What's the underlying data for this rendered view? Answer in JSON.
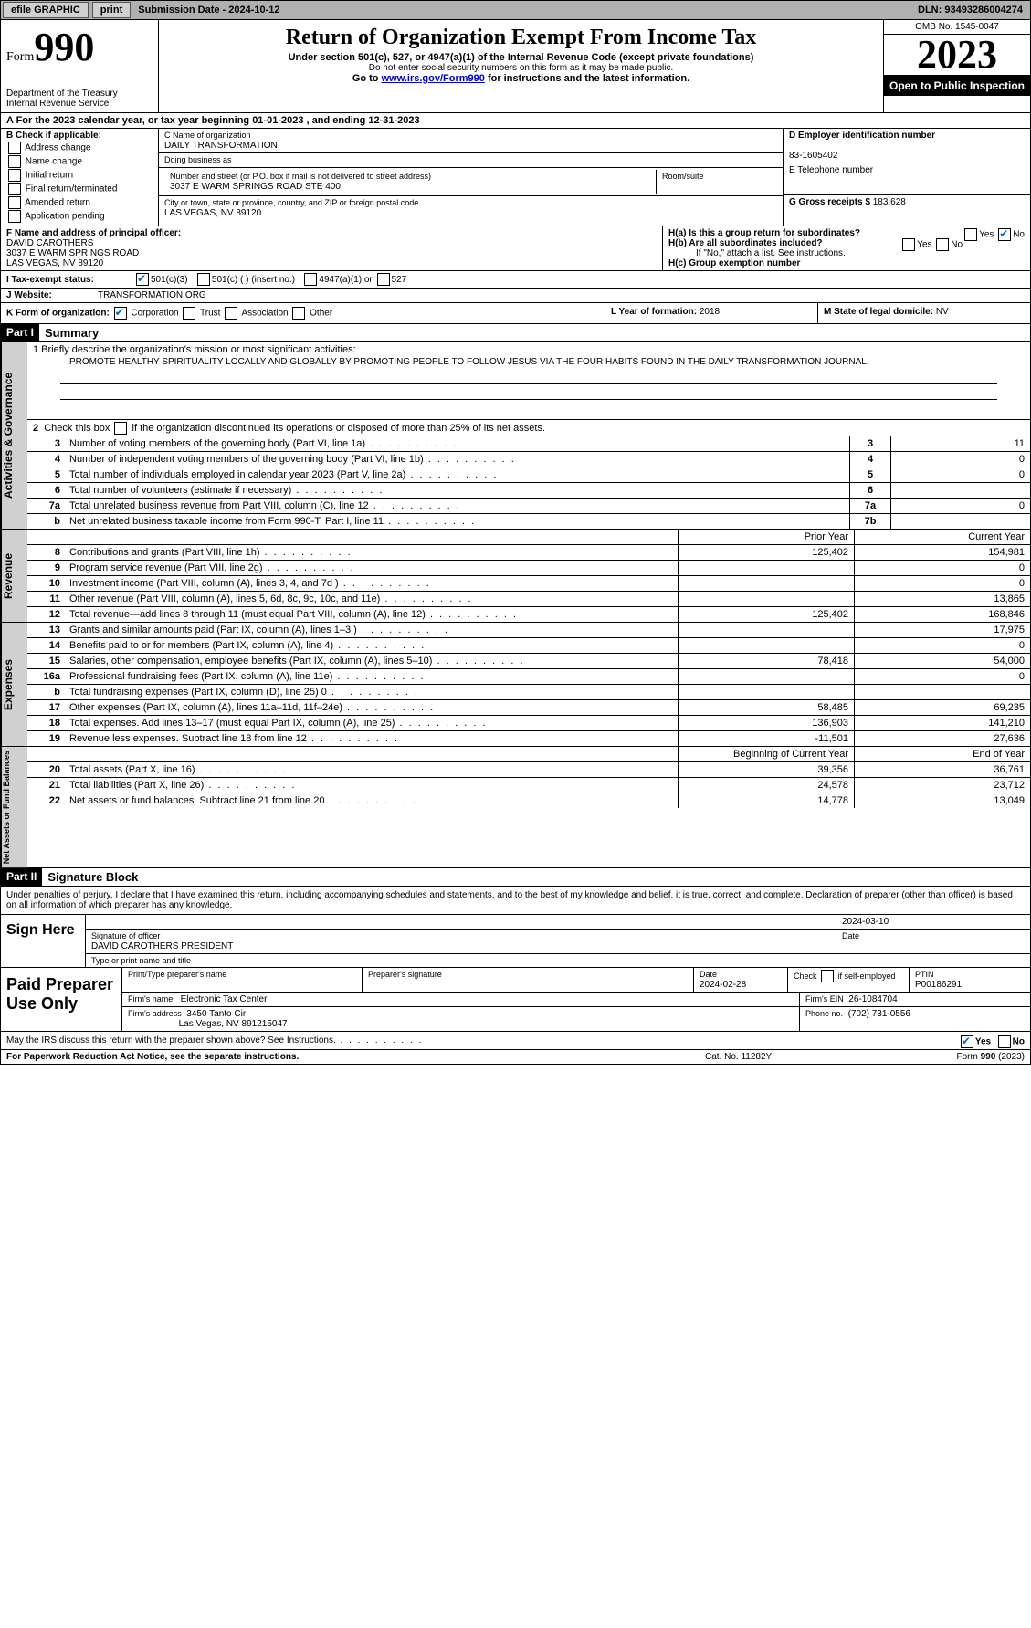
{
  "topbar": {
    "efile": "efile GRAPHIC",
    "print": "print",
    "submission": "Submission Date - 2024-10-12",
    "dln": "DLN: 93493286004274"
  },
  "header": {
    "form_word": "Form",
    "form_num": "990",
    "title": "Return of Organization Exempt From Income Tax",
    "subtitle": "Under section 501(c), 527, or 4947(a)(1) of the Internal Revenue Code (except private foundations)",
    "note": "Do not enter social security numbers on this form as it may be made public.",
    "goto_pre": "Go to ",
    "goto_link": "www.irs.gov/Form990",
    "goto_post": " for instructions and the latest information.",
    "dept": "Department of the Treasury\nInternal Revenue Service",
    "omb": "OMB No. 1545-0047",
    "year": "2023",
    "inspect": "Open to Public Inspection"
  },
  "row_a": "A  For the 2023 calendar year, or tax year beginning 01-01-2023    , and ending 12-31-2023",
  "section_b": {
    "label": "B Check if applicable:",
    "opts": [
      "Address change",
      "Name change",
      "Initial return",
      "Final return/terminated",
      "Amended return",
      "Application pending"
    ]
  },
  "section_c": {
    "name_lbl": "C Name of organization",
    "name": "DAILY TRANSFORMATION",
    "dba_lbl": "Doing business as",
    "dba": "",
    "addr_lbl": "Number and street (or P.O. box if mail is not delivered to street address)",
    "room_lbl": "Room/suite",
    "addr": "3037 E WARM SPRINGS ROAD STE 400",
    "city_lbl": "City or town, state or province, country, and ZIP or foreign postal code",
    "city": "LAS VEGAS, NV  89120"
  },
  "section_de": {
    "d_lbl": "D Employer identification number",
    "ein": "83-1605402",
    "e_lbl": "E Telephone number",
    "phone": "",
    "g_lbl": "G Gross receipts $",
    "g_val": "183,628"
  },
  "section_f": {
    "lbl": "F  Name and address of principal officer:",
    "name": "DAVID CAROTHERS",
    "addr1": "3037 E WARM SPRINGS ROAD",
    "addr2": "LAS VEGAS, NV  89120"
  },
  "section_h": {
    "a": "H(a)  Is this a group return for subordinates?",
    "b": "H(b)  Are all subordinates included?",
    "note": "If \"No,\" attach a list. See instructions.",
    "c": "H(c)  Group exemption number"
  },
  "section_i": {
    "lbl": "I    Tax-exempt status:",
    "opt1": "501(c)(3)",
    "opt2": "501(c) (  ) (insert no.)",
    "opt3": "4947(a)(1) or",
    "opt4": "527"
  },
  "section_j": {
    "lbl": "J   Website:",
    "val": "TRANSFORMATION.ORG"
  },
  "section_k": {
    "lbl": "K Form of organization:",
    "opts": [
      "Corporation",
      "Trust",
      "Association",
      "Other"
    ]
  },
  "section_l": {
    "lbl": "L Year of formation:",
    "val": "2018"
  },
  "section_m": {
    "lbl": "M State of legal domicile:",
    "val": "NV"
  },
  "part1": {
    "hdr": "Part I",
    "title": "Summary"
  },
  "mission": {
    "q": "1   Briefly describe the organization's mission or most significant activities:",
    "text": "PROMOTE HEALTHY SPIRITUALITY LOCALLY AND GLOBALLY BY PROMOTING PEOPLE TO FOLLOW JESUS VIA THE FOUR HABITS FOUND IN THE DAILY TRANSFORMATION JOURNAL."
  },
  "line2": "2   Check this box       if the organization discontinued its operations or disposed of more than 25% of its net assets.",
  "gov_rows": [
    {
      "n": "3",
      "d": "Number of voting members of the governing body (Part VI, line 1a)",
      "box": "3",
      "v": "11"
    },
    {
      "n": "4",
      "d": "Number of independent voting members of the governing body (Part VI, line 1b)",
      "box": "4",
      "v": "0"
    },
    {
      "n": "5",
      "d": "Total number of individuals employed in calendar year 2023 (Part V, line 2a)",
      "box": "5",
      "v": "0"
    },
    {
      "n": "6",
      "d": "Total number of volunteers (estimate if necessary)",
      "box": "6",
      "v": ""
    },
    {
      "n": "7a",
      "d": "Total unrelated business revenue from Part VIII, column (C), line 12",
      "box": "7a",
      "v": "0"
    },
    {
      "n": "b",
      "d": "Net unrelated business taxable income from Form 990-T, Part I, line 11",
      "box": "7b",
      "v": ""
    }
  ],
  "col_hdrs": {
    "prior": "Prior Year",
    "current": "Current Year"
  },
  "rev_rows": [
    {
      "n": "8",
      "d": "Contributions and grants (Part VIII, line 1h)",
      "p": "125,402",
      "c": "154,981"
    },
    {
      "n": "9",
      "d": "Program service revenue (Part VIII, line 2g)",
      "p": "",
      "c": "0"
    },
    {
      "n": "10",
      "d": "Investment income (Part VIII, column (A), lines 3, 4, and 7d )",
      "p": "",
      "c": "0"
    },
    {
      "n": "11",
      "d": "Other revenue (Part VIII, column (A), lines 5, 6d, 8c, 9c, 10c, and 11e)",
      "p": "",
      "c": "13,865"
    },
    {
      "n": "12",
      "d": "Total revenue—add lines 8 through 11 (must equal Part VIII, column (A), line 12)",
      "p": "125,402",
      "c": "168,846"
    }
  ],
  "exp_rows": [
    {
      "n": "13",
      "d": "Grants and similar amounts paid (Part IX, column (A), lines 1–3 )",
      "p": "",
      "c": "17,975"
    },
    {
      "n": "14",
      "d": "Benefits paid to or for members (Part IX, column (A), line 4)",
      "p": "",
      "c": "0"
    },
    {
      "n": "15",
      "d": "Salaries, other compensation, employee benefits (Part IX, column (A), lines 5–10)",
      "p": "78,418",
      "c": "54,000"
    },
    {
      "n": "16a",
      "d": "Professional fundraising fees (Part IX, column (A), line 11e)",
      "p": "",
      "c": "0"
    },
    {
      "n": "b",
      "d": "Total fundraising expenses (Part IX, column (D), line 25) 0",
      "p": "grey",
      "c": "grey"
    },
    {
      "n": "17",
      "d": "Other expenses (Part IX, column (A), lines 11a–11d, 11f–24e)",
      "p": "58,485",
      "c": "69,235"
    },
    {
      "n": "18",
      "d": "Total expenses. Add lines 13–17 (must equal Part IX, column (A), line 25)",
      "p": "136,903",
      "c": "141,210"
    },
    {
      "n": "19",
      "d": "Revenue less expenses. Subtract line 18 from line 12",
      "p": "-11,501",
      "c": "27,636"
    }
  ],
  "net_hdrs": {
    "b": "Beginning of Current Year",
    "e": "End of Year"
  },
  "net_rows": [
    {
      "n": "20",
      "d": "Total assets (Part X, line 16)",
      "p": "39,356",
      "c": "36,761"
    },
    {
      "n": "21",
      "d": "Total liabilities (Part X, line 26)",
      "p": "24,578",
      "c": "23,712"
    },
    {
      "n": "22",
      "d": "Net assets or fund balances. Subtract line 21 from line 20",
      "p": "14,778",
      "c": "13,049"
    }
  ],
  "side_labels": {
    "gov": "Activities & Governance",
    "rev": "Revenue",
    "exp": "Expenses",
    "net": "Net Assets or Fund Balances"
  },
  "part2": {
    "hdr": "Part II",
    "title": "Signature Block"
  },
  "declaration": "Under penalties of perjury, I declare that I have examined this return, including accompanying schedules and statements, and to the best of my knowledge and belief, it is true, correct, and complete. Declaration of preparer (other than officer) is based on all information of which preparer has any knowledge.",
  "sign": {
    "here": "Sign Here",
    "sig_lbl": "Signature of officer",
    "date": "2024-03-10",
    "date_lbl": "Date",
    "name": "DAVID CAROTHERS  PRESIDENT",
    "type_lbl": "Type or print name and title"
  },
  "paid": {
    "lbl": "Paid Preparer Use Only",
    "prep_name_lbl": "Print/Type preparer's name",
    "prep_sig_lbl": "Preparer's signature",
    "date_lbl": "Date",
    "date": "2024-02-28",
    "check_lbl": "Check        if self-employed",
    "ptin_lbl": "PTIN",
    "ptin": "P00186291",
    "firm_name_lbl": "Firm's name",
    "firm_name": "Electronic Tax Center",
    "firm_ein_lbl": "Firm's EIN",
    "firm_ein": "26-1084704",
    "firm_addr_lbl": "Firm's address",
    "firm_addr1": "3450 Tanto Cir",
    "firm_addr2": "Las Vegas, NV  891215047",
    "phone_lbl": "Phone no.",
    "phone": "(702) 731-0556"
  },
  "discuss": "May the IRS discuss this return with the preparer shown above? See Instructions.",
  "footer": {
    "left": "For Paperwork Reduction Act Notice, see the separate instructions.",
    "mid": "Cat. No. 11282Y",
    "right": "Form 990 (2023)"
  },
  "yes": "Yes",
  "no": "No"
}
